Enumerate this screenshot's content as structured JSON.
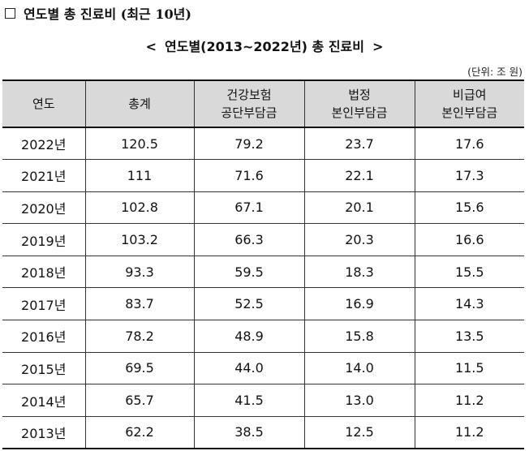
{
  "section_heading": "연도별 총 진료비 (최근 10년)",
  "table_title": {
    "left_bracket": "<",
    "text": "연도별(2013~2022년) 총 진료비",
    "right_bracket": ">"
  },
  "unit_note": "(단위: 조 원)",
  "columns": [
    {
      "line1": "연도",
      "line2": ""
    },
    {
      "line1": "총계",
      "line2": ""
    },
    {
      "line1": "건강보험",
      "line2": "공단부담금"
    },
    {
      "line1": "법정",
      "line2": "본인부담금"
    },
    {
      "line1": "비급여",
      "line2": "본인부담금"
    }
  ],
  "rows": [
    [
      "2022년",
      "120.5",
      "79.2",
      "23.7",
      "17.6"
    ],
    [
      "2021년",
      "111",
      "71.6",
      "22.1",
      "17.3"
    ],
    [
      "2020년",
      "102.8",
      "67.1",
      "20.1",
      "15.6"
    ],
    [
      "2019년",
      "103.2",
      "66.3",
      "20.3",
      "16.6"
    ],
    [
      "2018년",
      "93.3",
      "59.5",
      "18.3",
      "15.5"
    ],
    [
      "2017년",
      "83.7",
      "52.5",
      "16.9",
      "14.3"
    ],
    [
      "2016년",
      "78.2",
      "48.9",
      "15.8",
      "13.5"
    ],
    [
      "2015년",
      "69.5",
      "44.0",
      "14.0",
      "11.5"
    ],
    [
      "2014년",
      "65.7",
      "41.5",
      "13.0",
      "11.2"
    ],
    [
      "2013년",
      "62.2",
      "38.5",
      "12.5",
      "11.2"
    ]
  ]
}
